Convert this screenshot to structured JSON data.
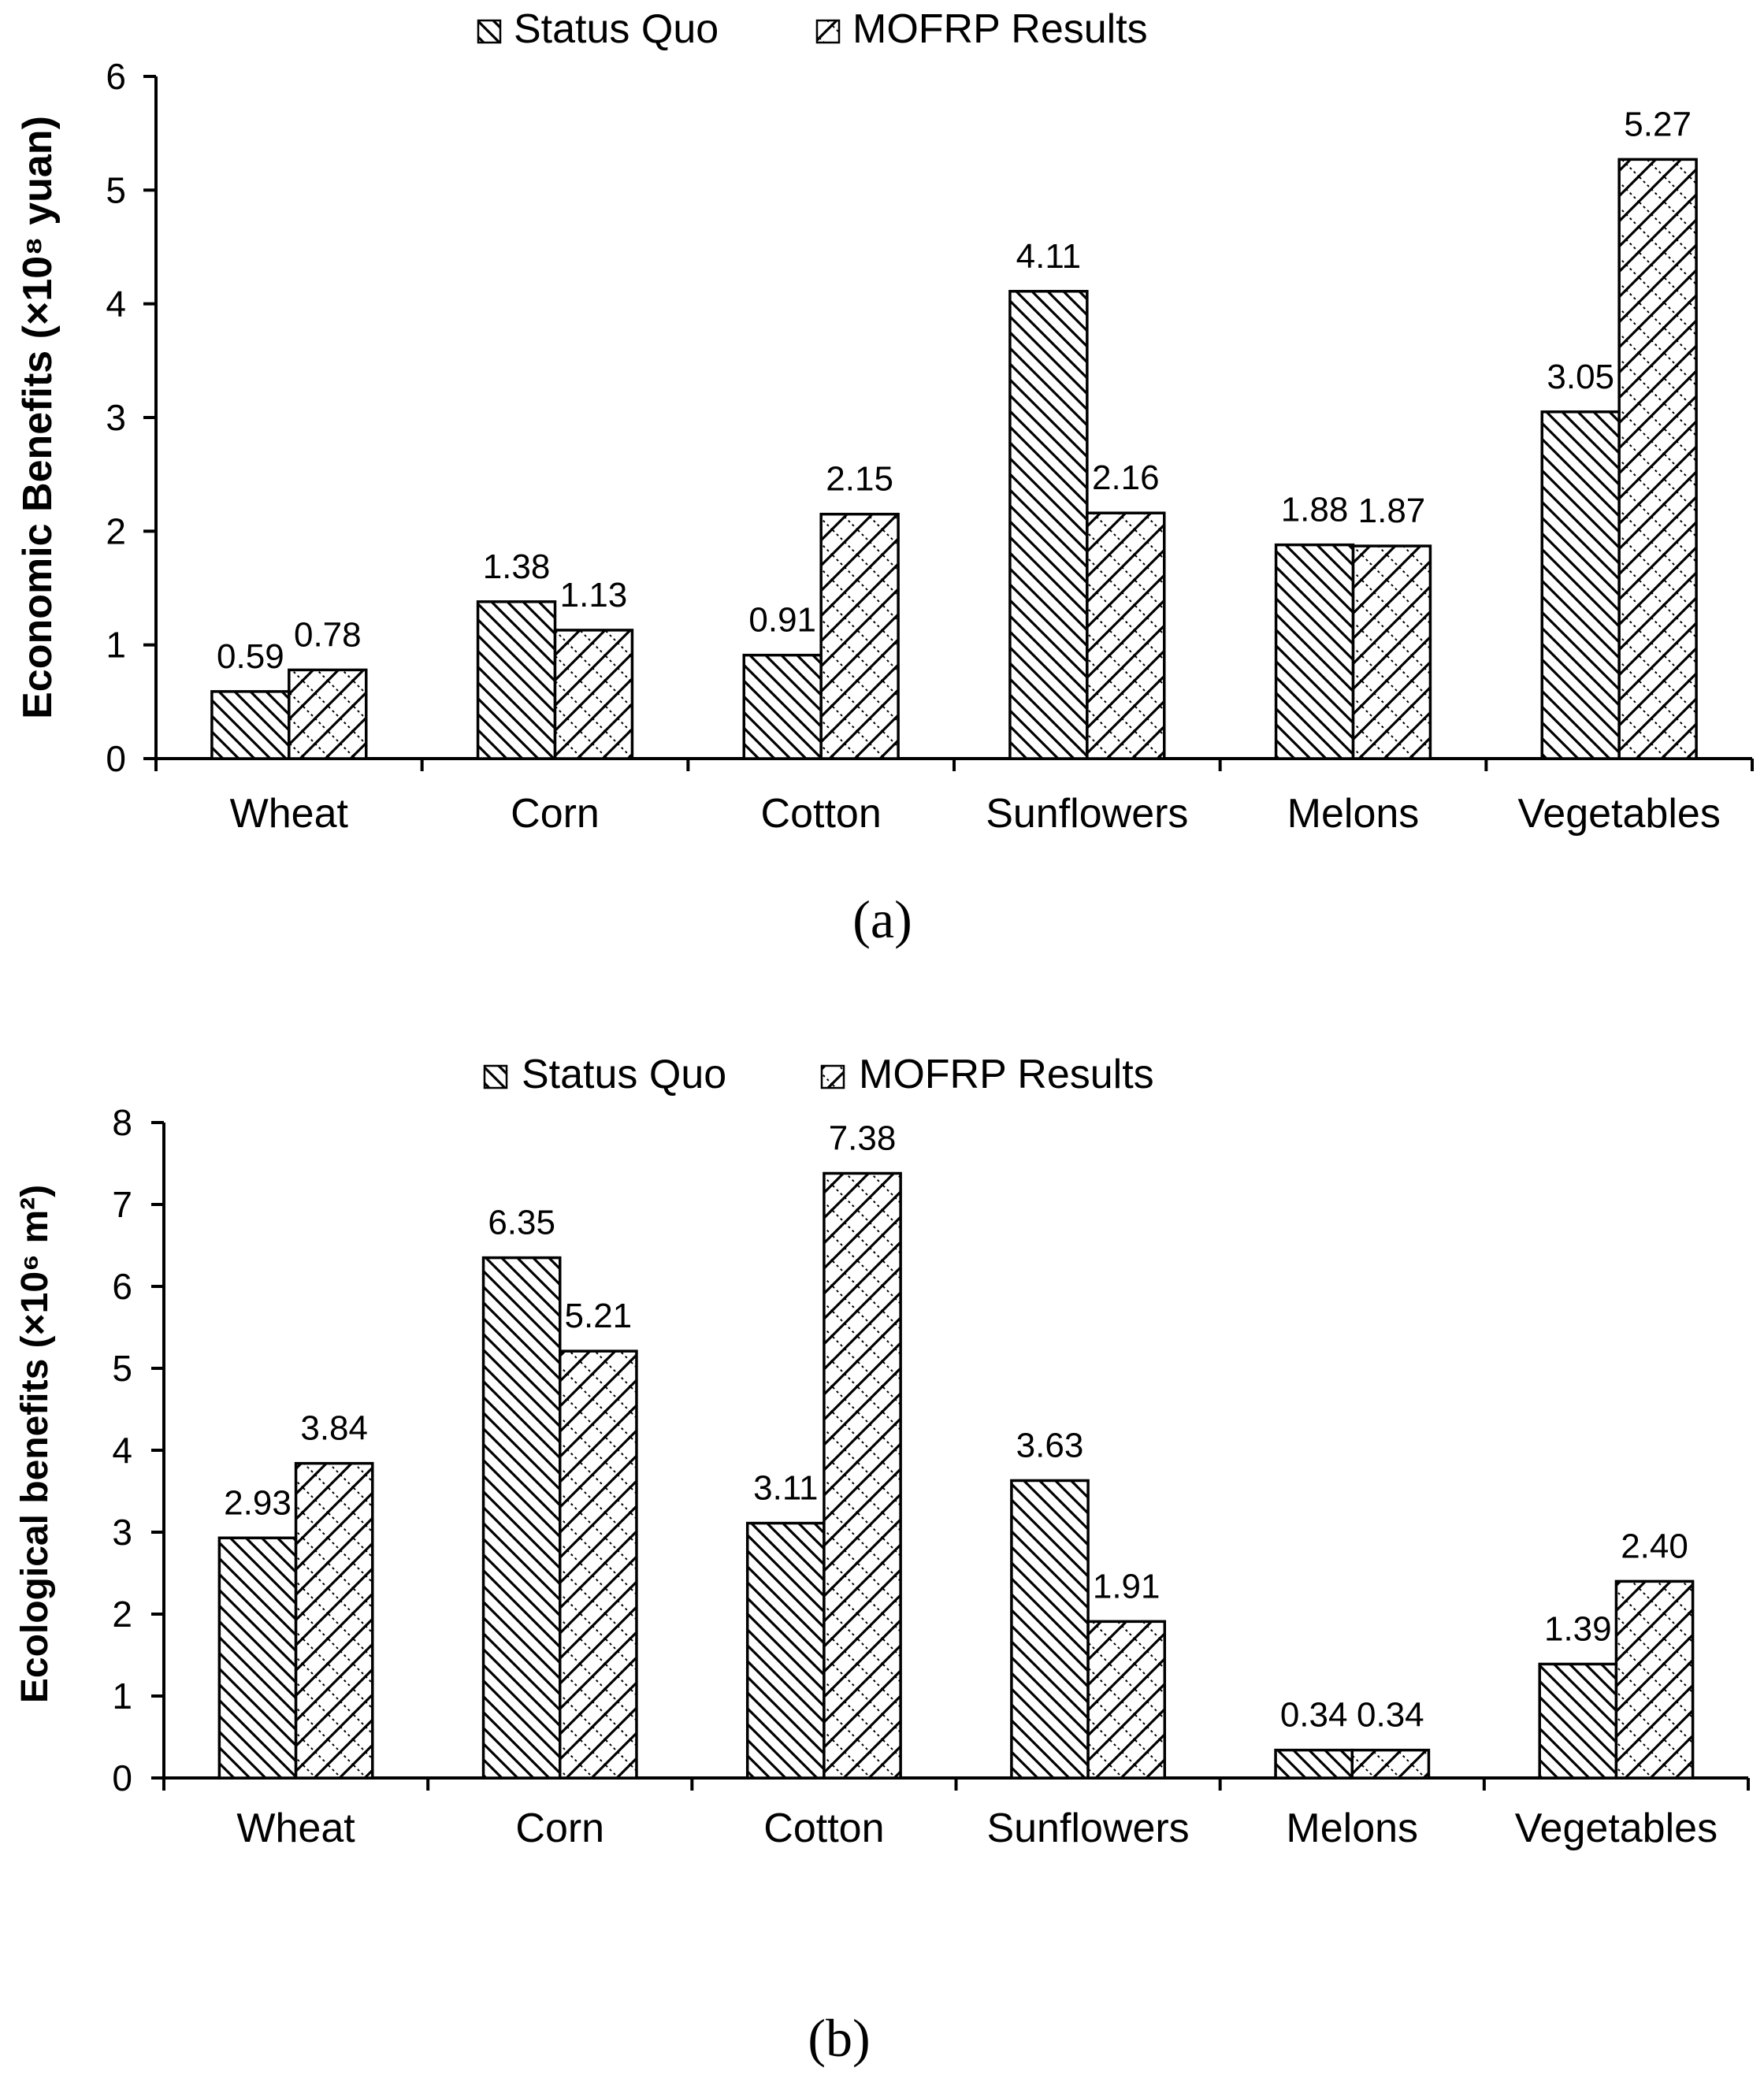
{
  "chart_data": [
    {
      "type": "bar",
      "panel_label": "a",
      "categories": [
        "Wheat",
        "Corn",
        "Cotton",
        "Sunflowers",
        "Melons",
        "Vegetables"
      ],
      "series": [
        {
          "name": "Status Quo",
          "values": [
            0.59,
            1.38,
            0.91,
            4.11,
            1.88,
            3.05
          ],
          "labels": [
            "0.59",
            "1.38",
            "0.91",
            "4.11",
            "1.88",
            "3.05"
          ]
        },
        {
          "name": "MOFRP Results",
          "values": [
            0.78,
            1.13,
            2.15,
            2.16,
            1.87,
            5.27
          ],
          "labels": [
            "0.78",
            "1.13",
            "2.15",
            "2.16",
            "1.87",
            "5.27"
          ]
        }
      ],
      "ylabel": "Economic Benefits (×10⁸ yuan)",
      "ylim": [
        0,
        6
      ],
      "yticks": [
        "0",
        "1",
        "2",
        "3",
        "4",
        "5",
        "6"
      ],
      "legend_position": "top-center",
      "grid": false
    },
    {
      "type": "bar",
      "panel_label": "b",
      "categories": [
        "Wheat",
        "Corn",
        "Cotton",
        "Sunflowers",
        "Melons",
        "Vegetables"
      ],
      "series": [
        {
          "name": "Status Quo",
          "values": [
            2.93,
            6.35,
            3.11,
            3.63,
            0.34,
            1.39
          ],
          "labels": [
            "2.93",
            "6.35",
            "3.11",
            "3.63",
            "0.34",
            "1.39"
          ]
        },
        {
          "name": "MOFRP Results",
          "values": [
            3.84,
            5.21,
            7.38,
            1.91,
            0.34,
            2.4
          ],
          "labels": [
            "3.84",
            "5.21",
            "7.38",
            "1.91",
            "0.34",
            "2.40"
          ]
        }
      ],
      "ylabel": "Ecological benefits (×10⁶ m²)",
      "ylim": [
        0,
        8
      ],
      "yticks": [
        "0",
        "1",
        "2",
        "3",
        "4",
        "5",
        "6",
        "7",
        "8"
      ],
      "legend_position": "top-center",
      "grid": false
    }
  ],
  "captions": [
    "(a)",
    "(b)"
  ],
  "colors": {
    "ink": "#000000",
    "background": "#ffffff"
  }
}
